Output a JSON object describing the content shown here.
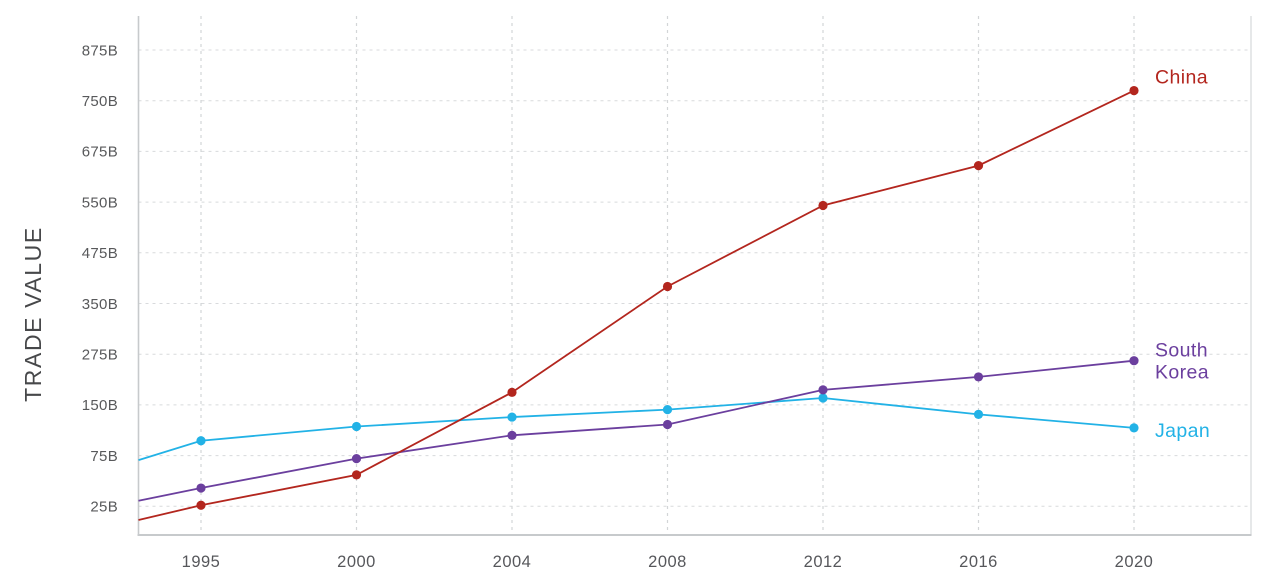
{
  "page": {
    "background": "#ffffff"
  },
  "chart_data": {
    "type": "line",
    "title": "",
    "ylabel": "TRADE VALUE",
    "xlabel": "",
    "unit": "B",
    "grid": "dashed",
    "legend_position": "inline-right-of-last-point",
    "x": [
      1995,
      2000,
      2004,
      2008,
      2012,
      2016,
      2020
    ],
    "x_tick_labels": [
      "1995",
      "2000",
      "2004",
      "2008",
      "2012",
      "2016",
      "2020"
    ],
    "y_tick_labels": [
      "875B",
      "750B",
      "675B",
      "550B",
      "475B",
      "350B",
      "275B",
      "150B",
      "75B",
      "25B"
    ],
    "y_tick_values": [
      875,
      750,
      675,
      550,
      475,
      350,
      275,
      150,
      75,
      25
    ],
    "series": [
      {
        "name": "Japan",
        "label_lines": [
          "Japan"
        ],
        "color": "#22b2e6",
        "left_edge_value": 70.5,
        "values": [
          97,
          118,
          132,
          143,
          167,
          136,
          116
        ]
      },
      {
        "name": "South Korea",
        "label_lines": [
          "South",
          "Korea"
        ],
        "color": "#6b3f9e",
        "left_edge_value": 30.5,
        "values": [
          43,
          72,
          105,
          121,
          187,
          219,
          259
        ]
      },
      {
        "name": "China",
        "label_lines": [
          "China"
        ],
        "color": "#b3261e",
        "left_edge_value": 11.5,
        "values": [
          26,
          56,
          181,
          392,
          545,
          640,
          775
        ]
      }
    ],
    "axis_colors": {
      "tick_label": "#58595b",
      "axis_line": "#c7cacc",
      "gridline": "#d8dadc"
    }
  }
}
